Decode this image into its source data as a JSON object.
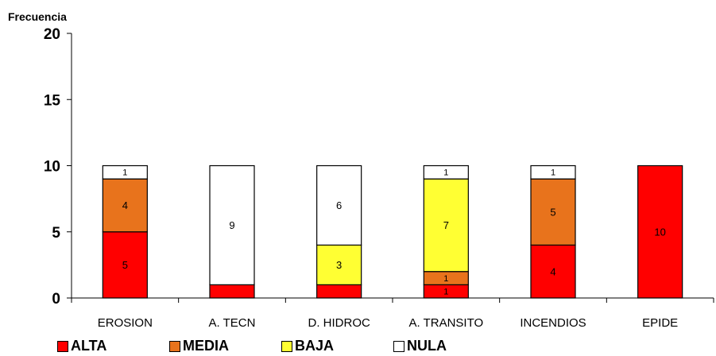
{
  "chart_data": {
    "type": "bar",
    "stacked": true,
    "ylabel": "Frecuencia",
    "ylim": [
      0,
      20
    ],
    "yticks": [
      0,
      5,
      10,
      15,
      20
    ],
    "grid": false,
    "legend_position": "bottom",
    "categories": [
      "EROSION",
      "A. TECN",
      "D. HIDROC",
      "A. TRANSITO",
      "INCENDIOS",
      "EPIDE"
    ],
    "series": [
      {
        "name": "ALTA",
        "color": "#ff0000",
        "values": [
          5,
          1,
          1,
          1,
          4,
          10
        ],
        "labels": [
          "5",
          "",
          "",
          "1",
          "4",
          "10"
        ]
      },
      {
        "name": "MEDIA",
        "color": "#e8731c",
        "values": [
          4,
          0,
          0,
          1,
          5,
          0
        ],
        "labels": [
          "4",
          "",
          "",
          "1",
          "5",
          ""
        ]
      },
      {
        "name": "BAJA",
        "color": "#ffff33",
        "values": [
          0,
          0,
          3,
          7,
          0,
          0
        ],
        "labels": [
          "",
          "",
          "3",
          "7",
          "",
          ""
        ]
      },
      {
        "name": "NULA",
        "color": "#ffffff",
        "values": [
          1,
          9,
          6,
          1,
          1,
          0
        ],
        "labels": [
          "1",
          "9",
          "6",
          "1",
          "1",
          ""
        ]
      }
    ]
  }
}
